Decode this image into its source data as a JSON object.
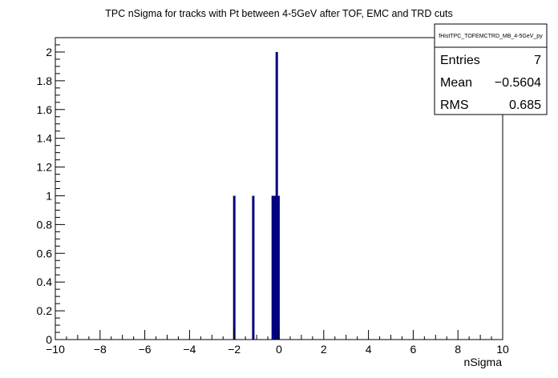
{
  "chart_data": {
    "type": "bar",
    "title": "TPC nSigma for tracks with Pt between 4-5GeV after TOF, EMC and TRD cuts",
    "xlabel": "nSigma",
    "ylabel": "",
    "xlim": [
      -10,
      10
    ],
    "ylim": [
      0,
      2.1
    ],
    "x_ticks": [
      -10,
      -8,
      -6,
      -4,
      -2,
      0,
      2,
      4,
      6,
      8,
      10
    ],
    "x_tick_labels": [
      "−10",
      "−8",
      "−6",
      "−4",
      "−2",
      "0",
      "2",
      "4",
      "6",
      "8",
      "10"
    ],
    "y_ticks": [
      0,
      0.2,
      0.4,
      0.6,
      0.8,
      1,
      1.2,
      1.4,
      1.6,
      1.8,
      2
    ],
    "y_tick_labels": [
      "0",
      "0.2",
      "0.4",
      "0.6",
      "0.8",
      "1",
      "1.2",
      "1.4",
      "1.6",
      "1.8",
      "2"
    ],
    "grid": false,
    "legend": "none",
    "bar_color": "#000080",
    "bars": [
      {
        "x": -2.0,
        "value": 1
      },
      {
        "x": -1.15,
        "value": 1
      },
      {
        "x": -0.28,
        "value": 1
      },
      {
        "x": -0.18,
        "value": 1
      },
      {
        "x": -0.1,
        "value": 2
      },
      {
        "x": -0.02,
        "value": 1
      }
    ],
    "stats": {
      "name": "fHistTPC_TOFEMCTRD_MB_4-5GeV_py",
      "entries_label": "Entries",
      "entries": "7",
      "mean_label": "Mean",
      "mean": "−0.5604",
      "rms_label": "RMS",
      "rms": "0.685"
    }
  }
}
